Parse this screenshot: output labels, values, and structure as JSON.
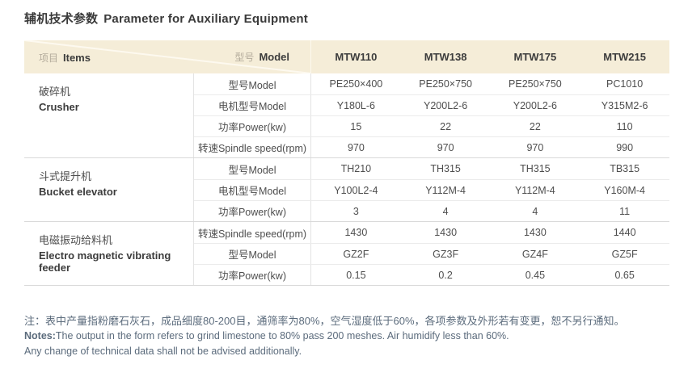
{
  "title": {
    "zh": "辅机技术参数",
    "en": "Parameter for Auxiliary Equipment"
  },
  "table": {
    "header": {
      "items_zh": "项目",
      "items_en": "Items",
      "model_zh": "型号",
      "model_en": "Model",
      "columns": [
        "MTW110",
        "MTW138",
        "MTW175",
        "MTW215"
      ]
    },
    "groups": [
      {
        "name_zh": "破碎机",
        "name_en": "Crusher",
        "rows": [
          {
            "param": "型号Model",
            "values": [
              "PE250×400",
              "PE250×750",
              "PE250×750",
              "PC1010"
            ]
          },
          {
            "param": "电机型号Model",
            "values": [
              "Y180L-6",
              "Y200L2-6",
              "Y200L2-6",
              "Y315M2-6"
            ]
          },
          {
            "param": "功率Power(kw)",
            "values": [
              "15",
              "22",
              "22",
              "110"
            ]
          },
          {
            "param": "转速Spindle speed(rpm)",
            "values": [
              "970",
              "970",
              "970",
              "990"
            ]
          }
        ]
      },
      {
        "name_zh": "斗式提升机",
        "name_en": "Bucket elevator",
        "rows": [
          {
            "param": "型号Model",
            "values": [
              "TH210",
              "TH315",
              "TH315",
              "TB315"
            ]
          },
          {
            "param": "电机型号Model",
            "values": [
              "Y100L2-4",
              "Y112M-4",
              "Y112M-4",
              "Y160M-4"
            ]
          },
          {
            "param": "功率Power(kw)",
            "values": [
              "3",
              "4",
              "4",
              "11"
            ]
          }
        ]
      },
      {
        "name_zh": "电磁振动给料机",
        "name_en": "Electro magnetic vibrating feeder",
        "rows": [
          {
            "param": "转速Spindle speed(rpm)",
            "values": [
              "1430",
              "1430",
              "1430",
              "1440"
            ]
          },
          {
            "param": "型号Model",
            "values": [
              "GZ2F",
              "GZ3F",
              "GZ4F",
              "GZ5F"
            ]
          },
          {
            "param": "功率Power(kw)",
            "values": [
              "0.15",
              "0.2",
              "0.45",
              "0.65"
            ]
          }
        ]
      }
    ]
  },
  "notes": {
    "line1": "注：表中产量指粉磨石灰石，成品细度80-200目，通筛率为80%，空气湿度低于60%，各项参数及外形若有变更，恕不另行通知。",
    "line2_label": "Notes:",
    "line2": "The output in the form refers to grind limestone to 80% pass 200 meshes. Air humidify less than 60%.",
    "line3": "Any change of technical data shall not be advised additionally."
  },
  "colors": {
    "header_bg": "#f5edd8",
    "muted_label": "#b3ab9b",
    "note_text": "#5b6b7c",
    "body_text": "#4e4e4e"
  }
}
